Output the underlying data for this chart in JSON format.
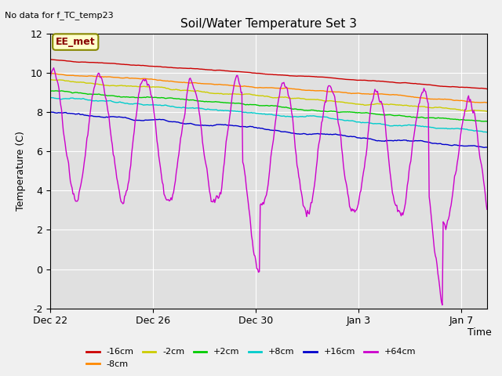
{
  "title": "Soil/Water Temperature Set 3",
  "top_left_text": "No data for f_TC_temp23",
  "annotation_box": "EE_met",
  "ylabel": "Temperature (C)",
  "xlabel": "Time",
  "ylim": [
    -2,
    12
  ],
  "yticks": [
    -2,
    0,
    2,
    4,
    6,
    8,
    10,
    12
  ],
  "xlim_days": [
    0,
    17
  ],
  "xtick_labels": [
    "Dec 22",
    "Dec 26",
    "Dec 30",
    "Jan 3",
    "Jan 7"
  ],
  "xtick_positions": [
    0,
    4,
    8,
    12,
    16
  ],
  "fig_facecolor": "#f0f0f0",
  "ax_facecolor": "#e0e0e0",
  "series_colors": {
    "-16cm": "#cc0000",
    "-8cm": "#ff8800",
    "-2cm": "#cccc00",
    "+2cm": "#00cc00",
    "+8cm": "#00cccc",
    "+16cm": "#0000cc",
    "+64cm": "#cc00cc"
  },
  "n_points": 500
}
